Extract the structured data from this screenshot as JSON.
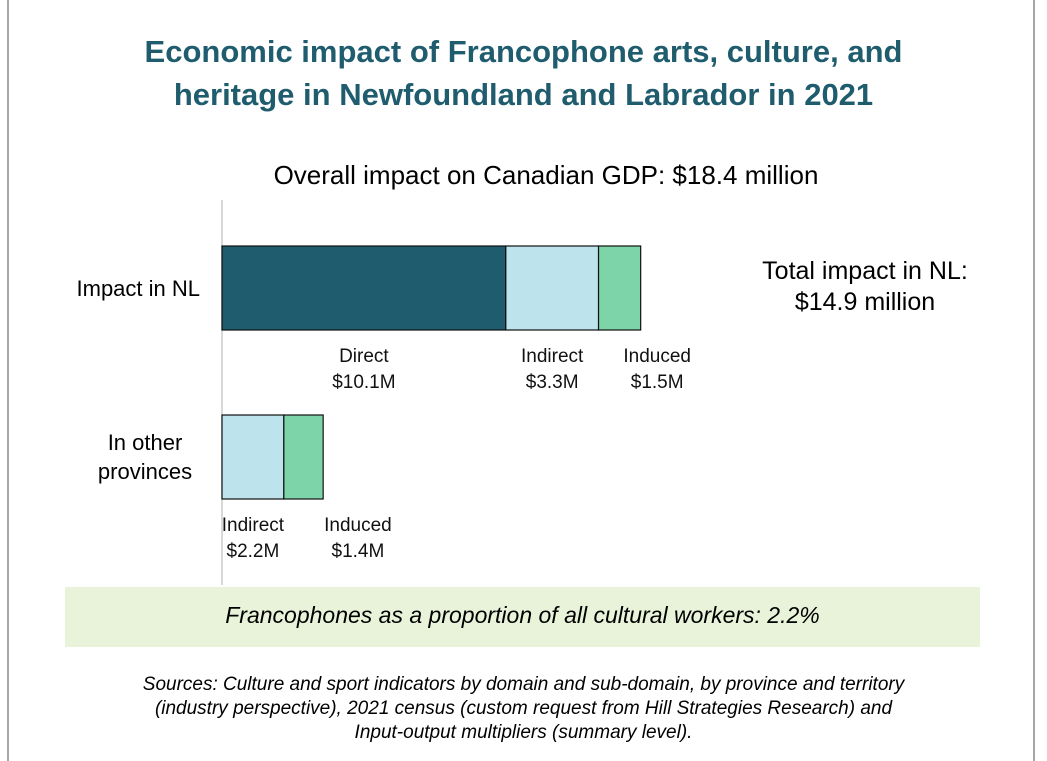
{
  "chart_data": {
    "type": "stacked-bar-horizontal",
    "title": [
      "Economic impact of Francophone arts, culture, and",
      "heritage in Newfoundland and Labrador in 2021"
    ],
    "subtitle": "Overall impact on Canadian GDP: $18.4 million",
    "annotation": [
      "Total impact in NL:",
      "$14.9 million"
    ],
    "categories": [
      "Impact in NL",
      "In other provinces"
    ],
    "series": [
      {
        "name": "Direct",
        "color": "#1f5c6e",
        "values": [
          10.1,
          null
        ],
        "value_labels": [
          "$10.1M",
          null
        ]
      },
      {
        "name": "Indirect",
        "color": "#bde3ec",
        "values": [
          3.3,
          2.2
        ],
        "value_labels": [
          "$3.3M",
          "$2.2M"
        ]
      },
      {
        "name": "Induced",
        "color": "#7dd4a8",
        "values": [
          1.5,
          1.4
        ],
        "value_labels": [
          "$1.5M",
          "$1.4M"
        ]
      }
    ],
    "callout": "Francophones as a proportion of all cultural workers: 2.2%",
    "sources": [
      "Sources: Culture and sport indicators by domain and sub-domain, by province and territory",
      "(industry perspective), 2021 census (custom request from Hill Strategies Research) and",
      "Input-output multipliers (summary level)."
    ]
  }
}
